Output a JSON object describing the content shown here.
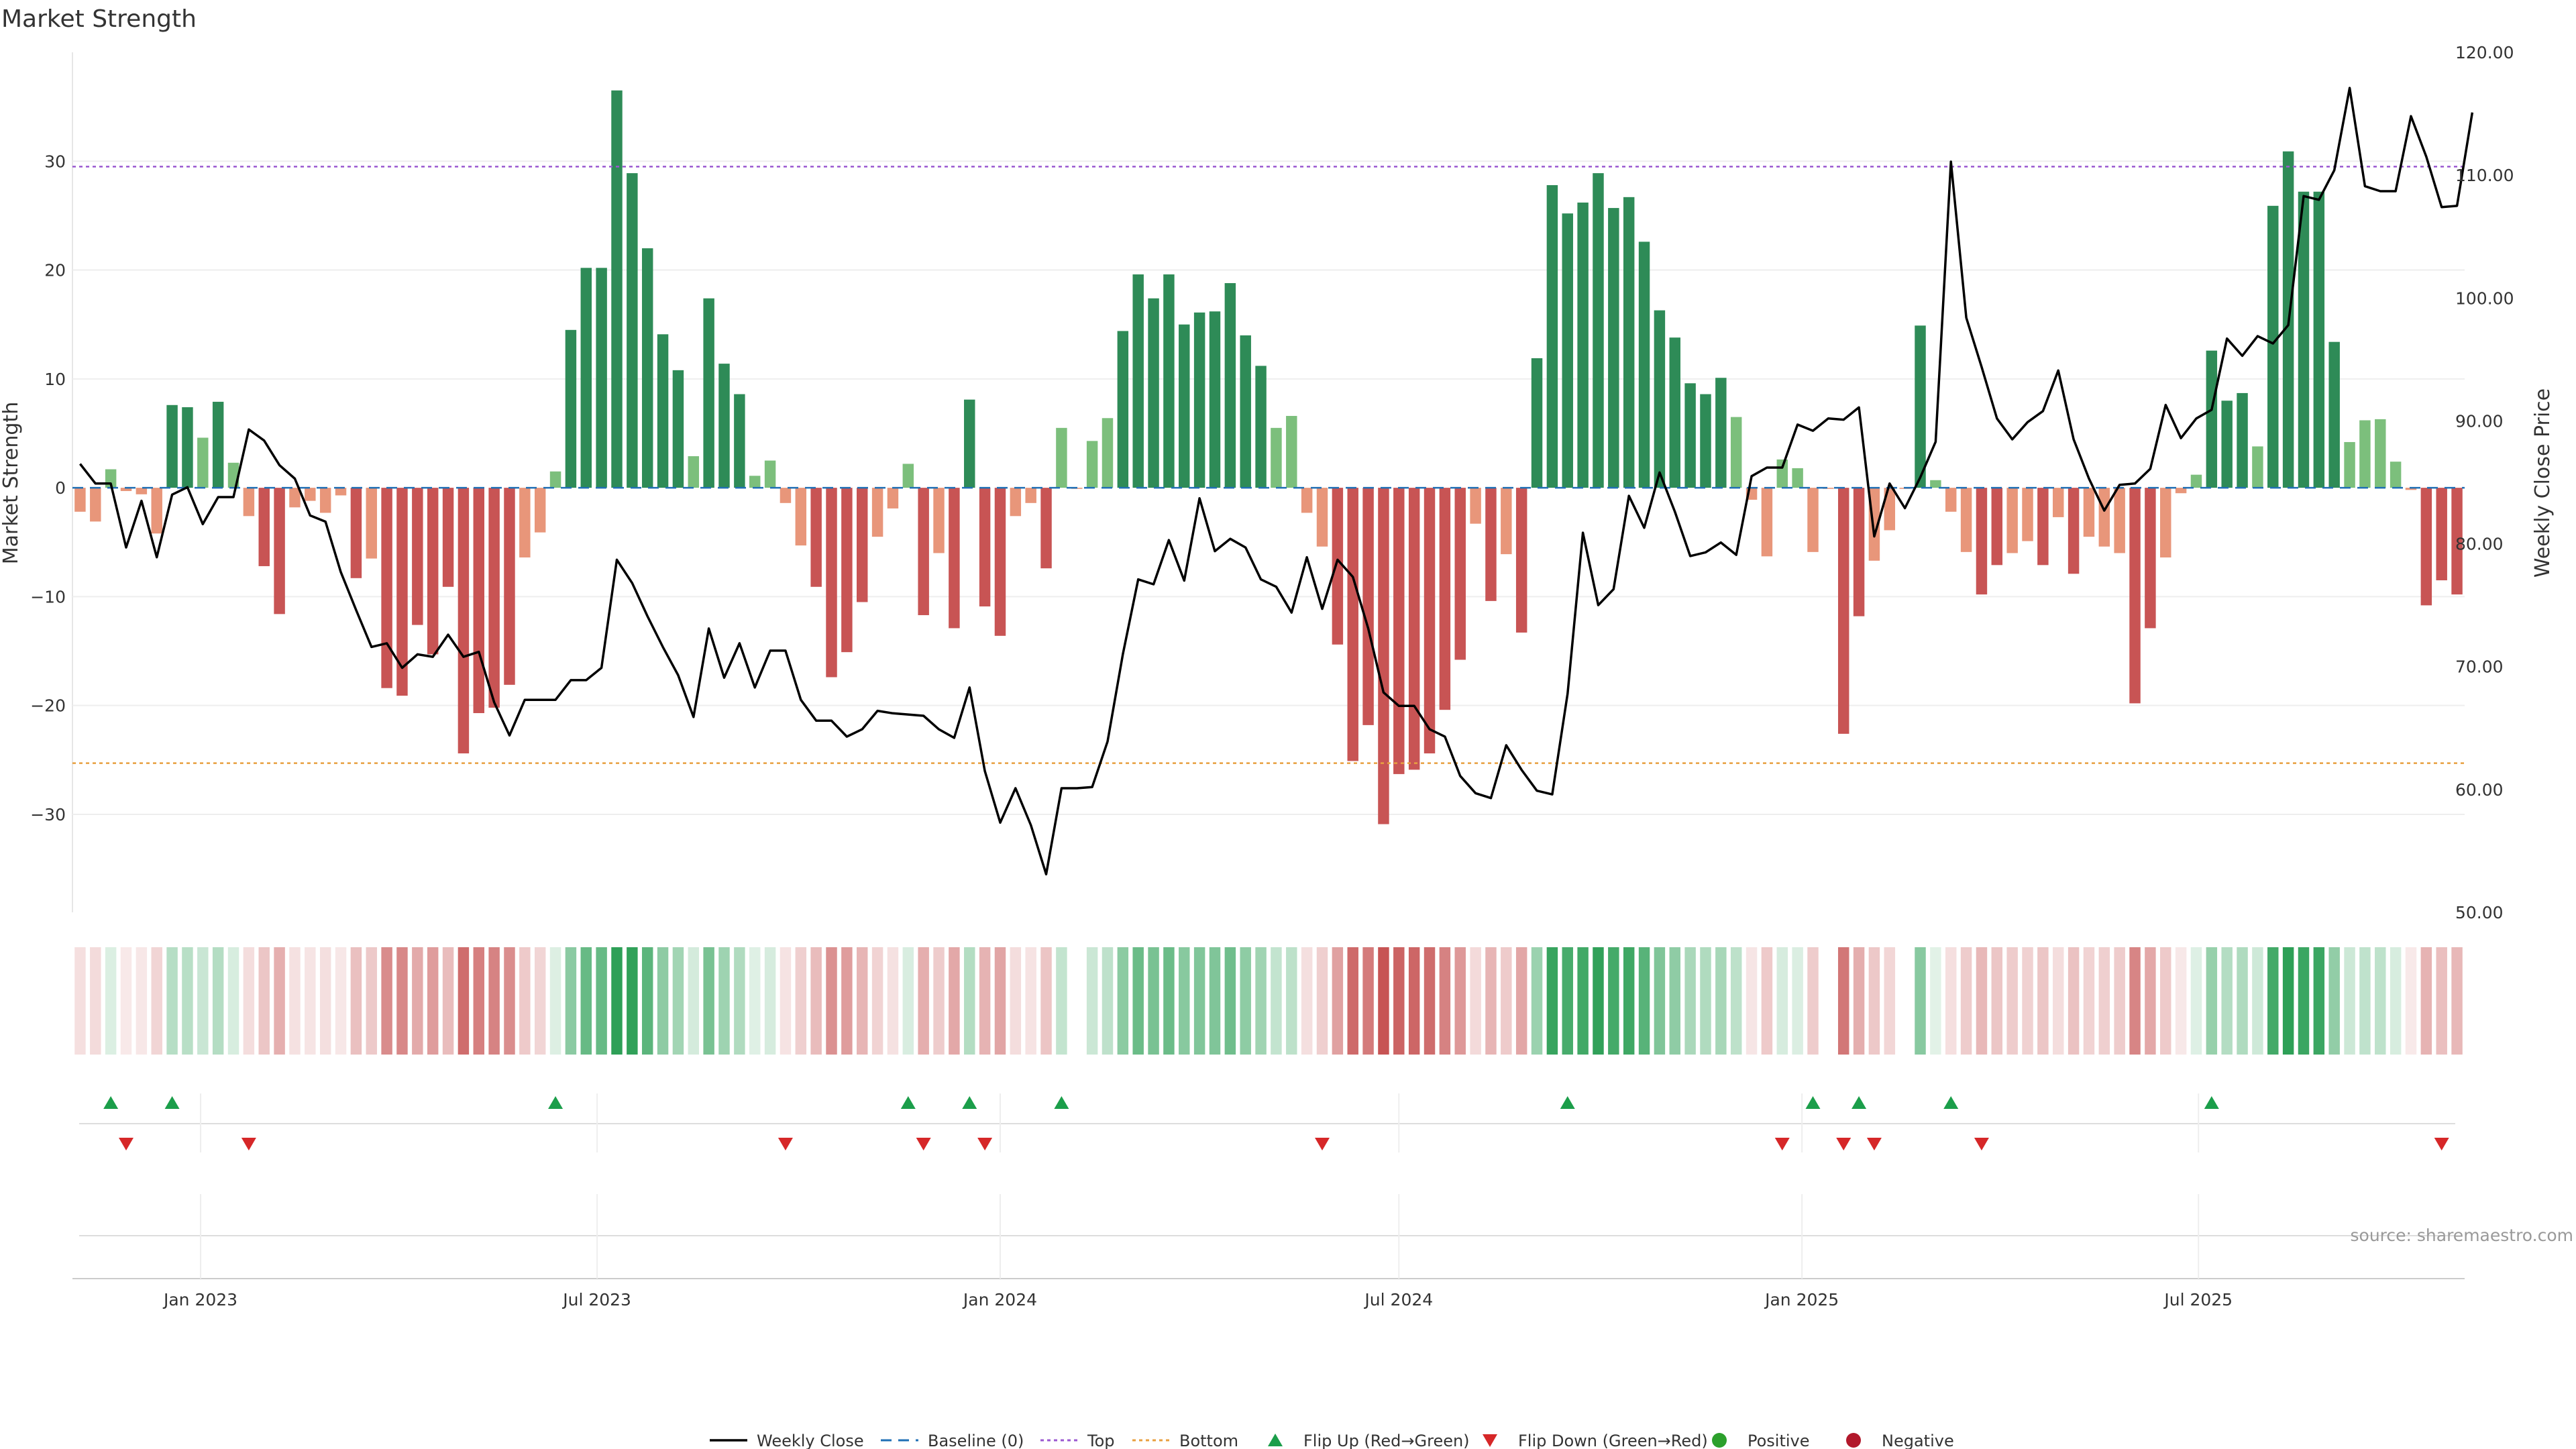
{
  "chart_data": {
    "type": "bar",
    "title": "Market Strength",
    "ylabel_left": "Market Strength",
    "ylabel_right": "Weekly Close Price",
    "ylim_left": [
      -39,
      40
    ],
    "yticks_left": [
      30,
      20,
      10,
      0,
      -10,
      -20,
      -30
    ],
    "ytick_labels_left": [
      "30",
      "20",
      "10",
      "0",
      "−10",
      "−20",
      "−30"
    ],
    "ylim_right": [
      50,
      120
    ],
    "yticks_right": [
      120,
      110,
      100,
      90,
      80,
      70,
      60,
      50
    ],
    "ytick_labels_right": [
      "120.00",
      "110.00",
      "100.00",
      "90.00",
      "80.00",
      "70.00",
      "60.00",
      "50.00"
    ],
    "x_start_date": "2022-11-07",
    "x_end_date": "2025-10-27",
    "x_ticks": [
      {
        "date": "2023-01-01",
        "label": "Jan 2023"
      },
      {
        "date": "2023-07-01",
        "label": "Jul 2023"
      },
      {
        "date": "2024-01-01",
        "label": "Jan 2024"
      },
      {
        "date": "2024-07-01",
        "label": "Jul 2024"
      },
      {
        "date": "2025-01-01",
        "label": "Jan 2025"
      },
      {
        "date": "2025-07-01",
        "label": "Jul 2025"
      }
    ],
    "top_threshold": 29.5,
    "bottom_threshold": -25.3,
    "grid": true,
    "colors": {
      "strong_positive": "#2e8b57",
      "weak_positive": "#7cbf7c",
      "strong_negative": "#c85454",
      "weak_negative": "#e8967a",
      "line": "#000000",
      "top": "#9b59d0",
      "bottom": "#e8a040",
      "baseline": "#1f6fb5",
      "flip_up": "#1b9e4a",
      "flip_down": "#d62728",
      "positive": "#2ca02c",
      "negative": "#b2182b"
    },
    "strength": [
      -2.2,
      -3.1,
      1.7,
      -0.3,
      -0.6,
      -4.2,
      7.6,
      7.4,
      4.6,
      7.9,
      2.3,
      -2.6,
      -7.2,
      -11.6,
      -1.8,
      -1.2,
      -2.3,
      -0.7,
      -8.3,
      -6.5,
      -18.4,
      -19.1,
      -12.6,
      -15.3,
      -9.1,
      -24.4,
      -20.7,
      -20.2,
      -18.1,
      -6.4,
      -4.1,
      1.5,
      14.5,
      20.2,
      20.2,
      36.5,
      28.9,
      22.0,
      14.1,
      10.8,
      2.9,
      17.4,
      11.4,
      8.6,
      1.1,
      2.5,
      -1.4,
      -5.3,
      -9.1,
      -17.4,
      -15.1,
      -10.5,
      -4.5,
      -1.9,
      2.2,
      -11.7,
      -6.0,
      -12.9,
      8.1,
      -10.9,
      -13.6,
      -2.6,
      -1.4,
      -7.4,
      5.5,
      -0.1,
      4.3,
      6.4,
      14.4,
      19.6,
      17.4,
      19.6,
      15.0,
      16.1,
      16.2,
      18.8,
      14.0,
      11.2,
      5.5,
      6.6,
      -2.3,
      -5.4,
      -14.4,
      -25.1,
      -21.8,
      -30.9,
      -26.3,
      -25.9,
      -24.4,
      -20.4,
      -15.8,
      -3.3,
      -10.4,
      -6.1,
      -13.3,
      11.9,
      27.8,
      25.2,
      26.2,
      28.9,
      25.7,
      26.7,
      22.6,
      16.3,
      13.8,
      9.6,
      8.6,
      10.1,
      6.5,
      -1.1,
      -6.3,
      2.6,
      1.8,
      -5.9,
      -0.1,
      -22.6,
      -11.8,
      -6.7,
      -3.9,
      -0.1,
      14.9,
      0.7,
      -2.2,
      -5.9,
      -9.8,
      -7.1,
      -6.0,
      -4.9,
      -7.1,
      -2.7,
      -7.9,
      -4.5,
      -5.4,
      -6.0,
      -19.8,
      -12.9,
      -6.4,
      -0.5,
      1.2,
      12.6,
      8.0,
      8.7,
      3.8,
      25.9,
      30.9,
      27.2,
      27.2,
      13.4,
      4.2,
      6.2,
      6.3,
      2.4,
      -0.2,
      -10.8,
      -8.5,
      -9.8
    ],
    "close": [
      86.5,
      84.9,
      84.9,
      79.7,
      83.5,
      78.9,
      84.0,
      84.6,
      81.6,
      83.8,
      83.8,
      89.3,
      88.4,
      86.4,
      85.3,
      82.3,
      81.8,
      77.7,
      74.6,
      71.6,
      71.9,
      69.9,
      71.0,
      70.8,
      72.6,
      70.8,
      71.2,
      67.1,
      64.4,
      67.3,
      67.3,
      67.3,
      68.9,
      68.9,
      69.9,
      78.7,
      76.8,
      74.1,
      71.6,
      69.3,
      65.9,
      73.1,
      69.1,
      71.9,
      68.3,
      71.3,
      71.3,
      67.3,
      65.6,
      65.6,
      64.3,
      64.9,
      66.4,
      66.2,
      66.1,
      66.0,
      64.9,
      64.2,
      68.3,
      61.5,
      57.3,
      60.1,
      57.1,
      53.1,
      60.1,
      60.1,
      60.2,
      63.9,
      71.0,
      77.1,
      76.7,
      80.3,
      77.0,
      83.7,
      79.4,
      80.4,
      79.7,
      77.1,
      76.5,
      74.4,
      78.9,
      74.7,
      78.7,
      77.3,
      73.1,
      67.9,
      66.8,
      66.8,
      64.9,
      64.3,
      61.1,
      59.7,
      59.3,
      63.6,
      61.6,
      59.9,
      59.6,
      67.8,
      80.9,
      75.0,
      76.3,
      83.9,
      81.3,
      85.8,
      82.6,
      79.0,
      79.3,
      80.1,
      79.1,
      85.5,
      86.2,
      86.2,
      89.7,
      89.2,
      90.2,
      90.1,
      91.1,
      80.6,
      84.9,
      82.9,
      85.4,
      88.3,
      111.1,
      98.4,
      94.4,
      90.2,
      88.5,
      89.9,
      90.8,
      94.1,
      88.5,
      85.3,
      82.7,
      84.8,
      84.9,
      86.1,
      91.3,
      88.6,
      90.2,
      90.9,
      96.7,
      95.3,
      96.9,
      96.3,
      97.8,
      108.3,
      108.0,
      110.4,
      117.1,
      109.1,
      108.7,
      108.7,
      114.8,
      111.5,
      107.4,
      107.5,
      115.1
    ],
    "flip_up_weeks": [
      2,
      6,
      31,
      54,
      58,
      64,
      97,
      113,
      116,
      122,
      139
    ],
    "flip_down_weeks": [
      3,
      11,
      46,
      55,
      59,
      81,
      111,
      115,
      117,
      124,
      154
    ],
    "source_text": "source: sharemaestro.com",
    "legend": [
      {
        "label": "Weekly Close",
        "kind": "line"
      },
      {
        "label": "Baseline (0)",
        "kind": "baseline"
      },
      {
        "label": "Top",
        "kind": "top"
      },
      {
        "label": "Bottom",
        "kind": "bottom"
      },
      {
        "label": "Flip Up (Red→Green)",
        "kind": "flip_up"
      },
      {
        "label": "Flip Down (Green→Red)",
        "kind": "flip_down"
      },
      {
        "label": "Positive",
        "kind": "positive"
      },
      {
        "label": "Negative",
        "kind": "negative"
      }
    ]
  }
}
